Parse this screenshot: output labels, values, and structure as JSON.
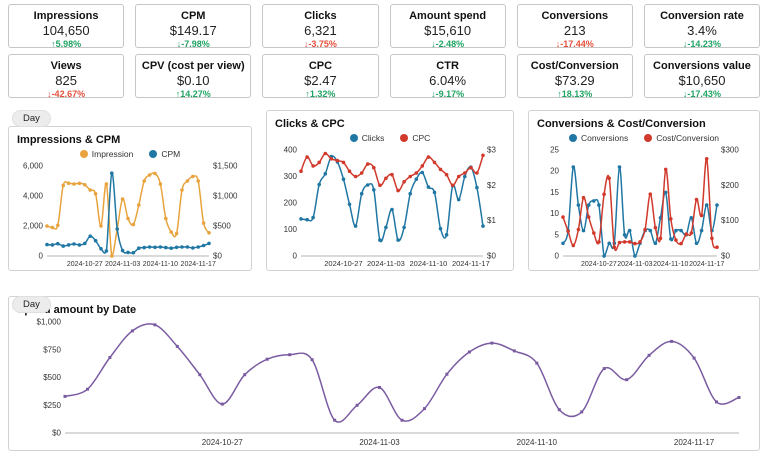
{
  "filters": [
    {
      "label": "Day"
    },
    {
      "label": "Day"
    }
  ],
  "colors": {
    "delta_green": "#1fa463",
    "delta_red": "#e4503c",
    "orange": "#e8a33d",
    "blue": "#2077a4",
    "red": "#d0392b",
    "purple": "#7a5ba1",
    "axis_line": "#b5b5b5",
    "axis_text": "#333333"
  },
  "kpi_rows": [
    [
      {
        "title": "Impressions",
        "value": "104,650",
        "delta": "5.98%",
        "arrow": "up",
        "tone": "green"
      },
      {
        "title": "CPM",
        "value": "$149.17",
        "delta": "-7.98%",
        "arrow": "down",
        "tone": "green"
      },
      {
        "title": "Clicks",
        "value": "6,321",
        "delta": "-3.75%",
        "arrow": "down",
        "tone": "red"
      },
      {
        "title": "Amount spend",
        "value": "$15,610",
        "delta": "-2.48%",
        "arrow": "down",
        "tone": "green"
      },
      {
        "title": "Conversions",
        "value": "213",
        "delta": "-17.44%",
        "arrow": "down",
        "tone": "red"
      },
      {
        "title": "Conversion rate",
        "value": "3.4%",
        "delta": "-14.23%",
        "arrow": "down",
        "tone": "green"
      }
    ],
    [
      {
        "title": "Views",
        "value": "825",
        "delta": "-42.67%",
        "arrow": "down",
        "tone": "red"
      },
      {
        "title": "CPV (cost per view)",
        "value": "$0.10",
        "delta": "14.27%",
        "arrow": "up",
        "tone": "green"
      },
      {
        "title": "CPC",
        "value": "$2.47",
        "delta": "1.32%",
        "arrow": "up",
        "tone": "green"
      },
      {
        "title": "CTR",
        "value": "6.04%",
        "delta": "-9.17%",
        "arrow": "down",
        "tone": "green"
      },
      {
        "title": "Cost/Conversion",
        "value": "$73.29",
        "delta": "18.13%",
        "arrow": "up",
        "tone": "green"
      },
      {
        "title": "Conversions value",
        "value": "$10,650",
        "delta": "-17.43%",
        "arrow": "down",
        "tone": "green"
      }
    ]
  ],
  "chart_data": [
    {
      "type": "line",
      "title": "Impressions & CPM",
      "grid": false,
      "legend_position": "top",
      "x": [
        "2024-10-20",
        "2024-10-21",
        "2024-10-22",
        "2024-10-23",
        "2024-10-24",
        "2024-10-25",
        "2024-10-26",
        "2024-10-27",
        "2024-10-28",
        "2024-10-29",
        "2024-10-30",
        "2024-10-31",
        "2024-11-01",
        "2024-11-02",
        "2024-11-03",
        "2024-11-04",
        "2024-11-05",
        "2024-11-06",
        "2024-11-07",
        "2024-11-08",
        "2024-11-09",
        "2024-11-10",
        "2024-11-11",
        "2024-11-12",
        "2024-11-13",
        "2024-11-14",
        "2024-11-15",
        "2024-11-16",
        "2024-11-17",
        "2024-11-18",
        "2024-11-19"
      ],
      "x_ticks": [
        "2024-10-27",
        "2024-11-03",
        "2024-11-10",
        "2024-11-17"
      ],
      "x_tick_indices": [
        7,
        14,
        21,
        28
      ],
      "left_axis": {
        "min": 0,
        "max": 6000,
        "ticks": [
          "0",
          "2,000",
          "4,000",
          "6,000"
        ]
      },
      "right_axis": {
        "min": 0,
        "max": 1500,
        "ticks": [
          "$0",
          "$500",
          "$1,000",
          "$1,500"
        ]
      },
      "series": [
        {
          "name": "Impression",
          "axis": "left",
          "color_key": "orange",
          "values": [
            2000,
            1900,
            2050,
            4700,
            4850,
            4800,
            4850,
            4750,
            4400,
            4150,
            2000,
            4800,
            0,
            1800,
            3800,
            2500,
            2100,
            3400,
            5000,
            5400,
            5500,
            4800,
            2500,
            1600,
            1500,
            4400,
            5000,
            5300,
            5000,
            2200,
            1550
          ]
        },
        {
          "name": "CPM",
          "axis": "right",
          "color_key": "blue",
          "values": [
            190,
            185,
            205,
            165,
            185,
            200,
            185,
            210,
            330,
            255,
            120,
            85,
            1380,
            450,
            90,
            60,
            55,
            130,
            140,
            150,
            145,
            150,
            140,
            130,
            145,
            150,
            150,
            135,
            150,
            175,
            210
          ]
        }
      ]
    },
    {
      "type": "line",
      "title": "Clicks & CPC",
      "grid": false,
      "legend_position": "top",
      "x": [
        "2024-10-20",
        "2024-10-21",
        "2024-10-22",
        "2024-10-23",
        "2024-10-24",
        "2024-10-25",
        "2024-10-26",
        "2024-10-27",
        "2024-10-28",
        "2024-10-29",
        "2024-10-30",
        "2024-10-31",
        "2024-11-01",
        "2024-11-02",
        "2024-11-03",
        "2024-11-04",
        "2024-11-05",
        "2024-11-06",
        "2024-11-07",
        "2024-11-08",
        "2024-11-09",
        "2024-11-10",
        "2024-11-11",
        "2024-11-12",
        "2024-11-13",
        "2024-11-14",
        "2024-11-15",
        "2024-11-16",
        "2024-11-17",
        "2024-11-18",
        "2024-11-19"
      ],
      "x_ticks": [
        "2024-10-27",
        "2024-11-03",
        "2024-11-10",
        "2024-11-17"
      ],
      "x_tick_indices": [
        7,
        14,
        21,
        28
      ],
      "left_axis": {
        "min": 0,
        "max": 400,
        "ticks": [
          "0",
          "100",
          "200",
          "300",
          "400"
        ]
      },
      "right_axis": {
        "min": 0,
        "max": 3,
        "ticks": [
          "$0",
          "$1",
          "$2",
          "$3"
        ]
      },
      "series": [
        {
          "name": "Clicks",
          "axis": "left",
          "color_key": "blue",
          "values": [
            140,
            137,
            145,
            270,
            310,
            375,
            355,
            290,
            195,
            113,
            235,
            268,
            250,
            60,
            108,
            175,
            60,
            108,
            235,
            290,
            315,
            260,
            240,
            103,
            80,
            265,
            213,
            300,
            335,
            258,
            113
          ]
        },
        {
          "name": "CPC",
          "axis": "right",
          "color_key": "red",
          "values": [
            2.4,
            2.8,
            2.55,
            2.65,
            2.9,
            2.75,
            2.7,
            2.65,
            2.4,
            2.25,
            2.35,
            2.6,
            2.5,
            2.0,
            2.2,
            2.3,
            1.85,
            2.1,
            2.25,
            2.35,
            2.55,
            2.8,
            2.65,
            2.45,
            2.3,
            2.0,
            2.25,
            2.35,
            2.5,
            2.35,
            2.85
          ]
        }
      ]
    },
    {
      "type": "line",
      "title": "Conversions & Cost/Conversion",
      "grid": false,
      "legend_position": "top",
      "x": [
        "2024-10-20",
        "2024-10-21",
        "2024-10-22",
        "2024-10-23",
        "2024-10-24",
        "2024-10-25",
        "2024-10-26",
        "2024-10-27",
        "2024-10-28",
        "2024-10-29",
        "2024-10-30",
        "2024-10-31",
        "2024-11-01",
        "2024-11-02",
        "2024-11-03",
        "2024-11-04",
        "2024-11-05",
        "2024-11-06",
        "2024-11-07",
        "2024-11-08",
        "2024-11-09",
        "2024-11-10",
        "2024-11-11",
        "2024-11-12",
        "2024-11-13",
        "2024-11-14",
        "2024-11-15",
        "2024-11-16",
        "2024-11-17",
        "2024-11-18",
        "2024-11-19"
      ],
      "x_ticks": [
        "2024-10-27",
        "2024-11-03",
        "2024-11-10",
        "2024-11-17"
      ],
      "x_tick_indices": [
        7,
        14,
        21,
        28
      ],
      "left_axis": {
        "min": 0,
        "max": 25,
        "ticks": [
          "0",
          "5",
          "10",
          "15",
          "20",
          "25"
        ]
      },
      "right_axis": {
        "min": 0,
        "max": 300,
        "ticks": [
          "$0",
          "$100",
          "$200",
          "$300"
        ]
      },
      "series": [
        {
          "name": "Conversions",
          "axis": "left",
          "color_key": "blue",
          "values": [
            3,
            6,
            21,
            12,
            6,
            12,
            13,
            12,
            0,
            3,
            3,
            21,
            5,
            6,
            0,
            3,
            6,
            6,
            3,
            9,
            15,
            4,
            6,
            6,
            5,
            9,
            3,
            6,
            12,
            6,
            12
          ]
        },
        {
          "name": "Cost/Conversion",
          "axis": "right",
          "color_key": "red",
          "values": [
            110,
            70,
            30,
            75,
            165,
            110,
            65,
            40,
            175,
            220,
            25,
            38,
            40,
            40,
            35,
            40,
            75,
            175,
            80,
            50,
            245,
            105,
            45,
            35,
            62,
            65,
            160,
            115,
            275,
            50,
            25
          ]
        }
      ]
    },
    {
      "type": "line",
      "title": "Spend amount by Date",
      "grid": false,
      "legend_position": "none",
      "x": [
        "2024-10-20",
        "2024-10-21",
        "2024-10-22",
        "2024-10-23",
        "2024-10-24",
        "2024-10-25",
        "2024-10-26",
        "2024-10-27",
        "2024-10-28",
        "2024-10-29",
        "2024-10-30",
        "2024-10-31",
        "2024-11-01",
        "2024-11-02",
        "2024-11-03",
        "2024-11-04",
        "2024-11-05",
        "2024-11-06",
        "2024-11-07",
        "2024-11-08",
        "2024-11-09",
        "2024-11-10",
        "2024-11-11",
        "2024-11-12",
        "2024-11-13",
        "2024-11-14",
        "2024-11-15",
        "2024-11-16",
        "2024-11-17",
        "2024-11-18",
        "2024-11-19"
      ],
      "x_ticks": [
        "2024-10-27",
        "2024-11-03",
        "2024-11-10",
        "2024-11-17"
      ],
      "x_tick_indices": [
        7,
        14,
        21,
        28
      ],
      "left_axis": {
        "min": 0,
        "max": 1000,
        "ticks": [
          "$0",
          "$250",
          "$500",
          "$750",
          "$1,000"
        ]
      },
      "series": [
        {
          "name": "Spend amount",
          "axis": "left",
          "color_key": "purple",
          "values": [
            330,
            395,
            680,
            920,
            975,
            780,
            525,
            260,
            525,
            665,
            705,
            660,
            115,
            250,
            410,
            115,
            220,
            530,
            730,
            810,
            740,
            630,
            210,
            190,
            580,
            480,
            700,
            825,
            675,
            280,
            320
          ]
        }
      ]
    }
  ]
}
